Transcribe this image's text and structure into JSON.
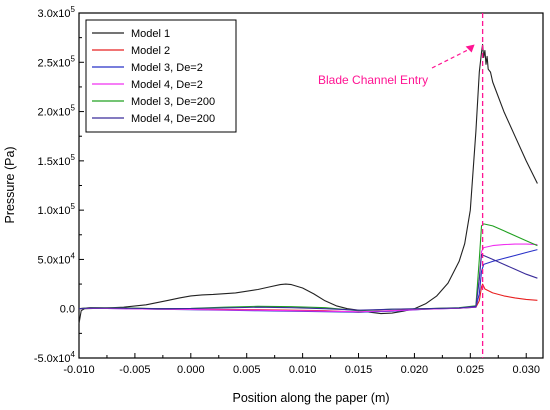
{
  "chart_data": {
    "type": "line",
    "xlabel": "Position along the paper (m)",
    "ylabel": "Pressure (Pa)",
    "xlim": [
      -0.01,
      0.0315
    ],
    "ylim": [
      -50000,
      300000
    ],
    "x_ticks": [
      -0.01,
      -0.005,
      0.0,
      0.005,
      0.01,
      0.015,
      0.02,
      0.025,
      0.03
    ],
    "x_tick_labels": [
      "-0.010",
      "-0.005",
      "0.000",
      "0.005",
      "0.010",
      "0.015",
      "0.020",
      "0.025",
      "0.030"
    ],
    "y_ticks": [
      -50000,
      0,
      50000,
      100000,
      150000,
      200000,
      250000,
      300000
    ],
    "y_tick_labels": [
      {
        "base": "-5.0x10",
        "exp": "4"
      },
      {
        "base": "0.0",
        "exp": ""
      },
      {
        "base": "5.0x10",
        "exp": "4"
      },
      {
        "base": "1.0x10",
        "exp": "5"
      },
      {
        "base": "1.5x10",
        "exp": "5"
      },
      {
        "base": "2.0x10",
        "exp": "5"
      },
      {
        "base": "2.5x10",
        "exp": "5"
      },
      {
        "base": "3.0x10",
        "exp": "5"
      }
    ],
    "legend_position": "top-left",
    "series": [
      {
        "name": "Model 1",
        "color": "#222222",
        "x": [
          -0.01,
          -0.0098,
          -0.0095,
          -0.008,
          -0.006,
          -0.004,
          -0.002,
          -0.001,
          0.0,
          0.001,
          0.002,
          0.004,
          0.006,
          0.007,
          0.008,
          0.0085,
          0.009,
          0.01,
          0.011,
          0.012,
          0.013,
          0.014,
          0.015,
          0.016,
          0.017,
          0.018,
          0.019,
          0.02,
          0.021,
          0.022,
          0.023,
          0.024,
          0.0245,
          0.025,
          0.0255,
          0.0258,
          0.026,
          0.0261,
          0.0262,
          0.0263,
          0.0264,
          0.0265,
          0.0266,
          0.0268,
          0.027,
          0.028,
          0.029,
          0.03,
          0.031
        ],
        "y": [
          -15000,
          -2000,
          0,
          500,
          1500,
          4000,
          8500,
          11000,
          13000,
          14000,
          14500,
          16000,
          19500,
          22000,
          24500,
          25000,
          24500,
          21000,
          15000,
          8000,
          3000,
          0,
          -1500,
          -3500,
          -5000,
          -4500,
          -2500,
          0,
          5000,
          13000,
          26000,
          48000,
          66000,
          100000,
          180000,
          240000,
          260000,
          268000,
          255000,
          262000,
          248000,
          256000,
          243000,
          240000,
          230000,
          200000,
          175000,
          150000,
          127000
        ]
      },
      {
        "name": "Model 2",
        "color": "#e82020",
        "x": [
          -0.01,
          -0.009,
          -0.006,
          -0.003,
          0.0,
          0.003,
          0.006,
          0.009,
          0.012,
          0.015,
          0.018,
          0.021,
          0.024,
          0.0255,
          0.0258,
          0.026,
          0.0261,
          0.0263,
          0.027,
          0.028,
          0.029,
          0.03,
          0.031
        ],
        "y": [
          0,
          1000,
          500,
          0,
          -500,
          -800,
          -1000,
          -1500,
          -2000,
          -3500,
          -2000,
          0,
          500,
          1500,
          8000,
          22000,
          25000,
          20000,
          16000,
          13000,
          11000,
          9500,
          8500
        ]
      },
      {
        "name": "Model 3, De=2",
        "color": "#2830c8",
        "x": [
          -0.01,
          -0.009,
          -0.006,
          -0.003,
          0.0,
          0.003,
          0.006,
          0.009,
          0.012,
          0.015,
          0.018,
          0.021,
          0.024,
          0.0255,
          0.0258,
          0.026,
          0.0262,
          0.027,
          0.028,
          0.029,
          0.03,
          0.031
        ],
        "y": [
          0,
          500,
          0,
          -500,
          -1000,
          -1500,
          -2000,
          -2500,
          -3000,
          -3500,
          -2500,
          -500,
          500,
          1500,
          15000,
          38000,
          45000,
          48000,
          51000,
          54000,
          57000,
          60000
        ]
      },
      {
        "name": "Model 4, De=2",
        "color": "#f030f0",
        "x": [
          -0.01,
          -0.009,
          -0.006,
          -0.003,
          0.0,
          0.003,
          0.006,
          0.009,
          0.012,
          0.015,
          0.018,
          0.021,
          0.024,
          0.0255,
          0.0258,
          0.026,
          0.0262,
          0.027,
          0.028,
          0.029,
          0.03,
          0.031
        ],
        "y": [
          0,
          500,
          0,
          -500,
          -800,
          -1200,
          -1500,
          -2000,
          -2500,
          -3000,
          -2000,
          -500,
          500,
          2000,
          30000,
          58000,
          62000,
          64000,
          65000,
          65500,
          65500,
          65000
        ]
      },
      {
        "name": "Model 3, De=200",
        "color": "#20a020",
        "x": [
          -0.01,
          -0.009,
          -0.006,
          -0.003,
          0.0,
          0.003,
          0.006,
          0.009,
          0.012,
          0.015,
          0.018,
          0.021,
          0.024,
          0.0255,
          0.0258,
          0.026,
          0.0262,
          0.027,
          0.028,
          0.029,
          0.03,
          0.031
        ],
        "y": [
          0,
          1000,
          800,
          0,
          300,
          1500,
          2500,
          2000,
          1000,
          -2000,
          -500,
          0,
          1000,
          3000,
          50000,
          84000,
          86000,
          84000,
          79000,
          74000,
          69000,
          64000
        ]
      },
      {
        "name": "Model 4, De=200",
        "color": "#3a2c9a",
        "x": [
          -0.01,
          -0.009,
          -0.006,
          -0.003,
          0.0,
          0.003,
          0.006,
          0.009,
          0.012,
          0.015,
          0.018,
          0.021,
          0.024,
          0.0255,
          0.0258,
          0.026,
          0.0262,
          0.027,
          0.028,
          0.029,
          0.03,
          0.031
        ],
        "y": [
          0,
          800,
          500,
          0,
          200,
          800,
          1500,
          1000,
          0,
          -1500,
          -500,
          0,
          800,
          2500,
          30000,
          55000,
          54000,
          50000,
          45000,
          40000,
          35000,
          31000
        ]
      }
    ],
    "vline": {
      "x": 0.0261,
      "color": "#ff1493"
    },
    "annotation": {
      "text": "Blade Channel Entry",
      "color": "#ff1493"
    }
  }
}
